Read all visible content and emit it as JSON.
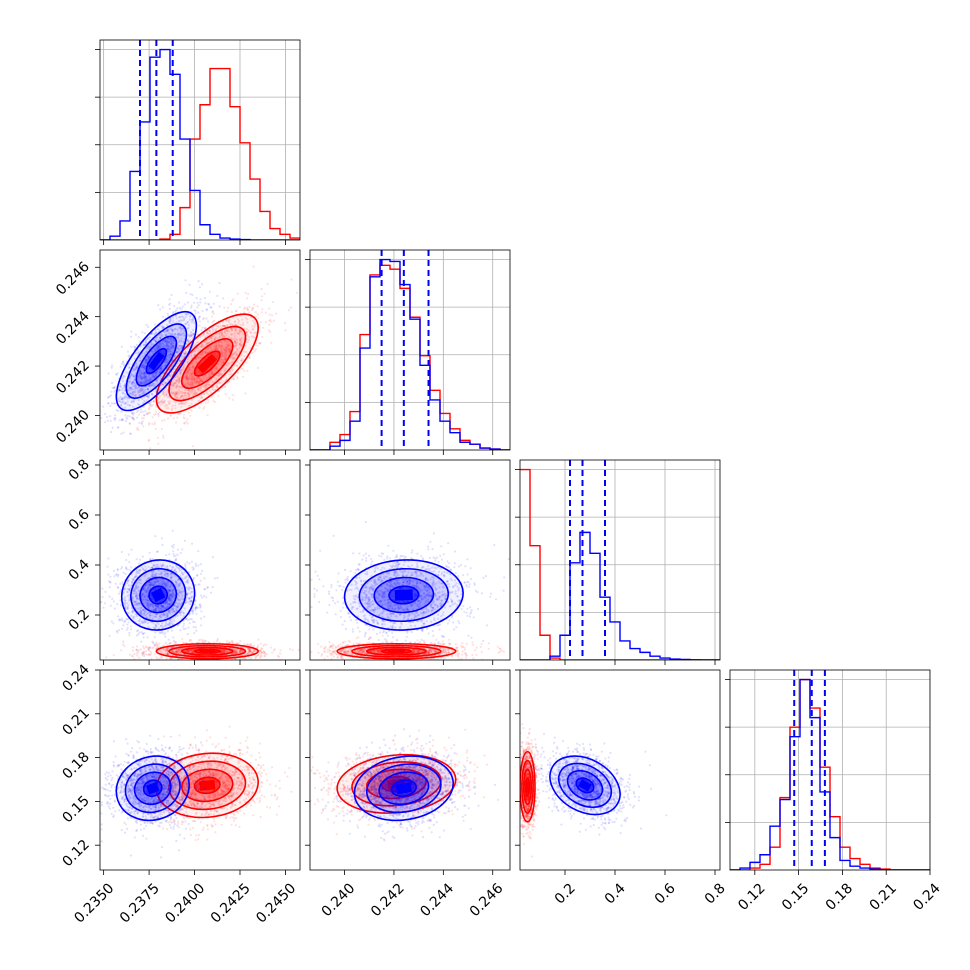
{
  "chart_data": {
    "type": "corner",
    "grid": true,
    "colors": {
      "series_a": "#0000ff",
      "series_b": "#ff0000"
    },
    "series": [
      {
        "color": "#0000ff",
        "quantiles": [
          [
            0.237,
            0.2379,
            0.2388
          ],
          [
            0.2415,
            0.2424,
            0.2434
          ],
          [
            0.22,
            0.27,
            0.36
          ],
          [
            0.147,
            0.159,
            0.168
          ]
        ]
      },
      {
        "color": "#ff0000"
      }
    ],
    "params": [
      {
        "range": [
          0.2348,
          0.2458
        ],
        "ticks": [
          0.235,
          0.2375,
          0.24,
          0.2425,
          0.245
        ],
        "tick_labels": [
          "0.2350",
          "0.2375",
          "0.2400",
          "0.2425",
          "0.2450"
        ]
      },
      {
        "range": [
          0.2386,
          0.2467
        ],
        "ticks": [
          0.24,
          0.242,
          0.244,
          0.246
        ],
        "tick_labels": [
          "0.240",
          "0.242",
          "0.244",
          "0.246"
        ]
      },
      {
        "range": [
          0.02,
          0.82
        ],
        "ticks": [
          0.2,
          0.4,
          0.6,
          0.8
        ],
        "tick_labels": [
          "0.2",
          "0.4",
          "0.6",
          "0.8"
        ]
      },
      {
        "range": [
          0.103,
          0.24
        ],
        "ticks": [
          0.12,
          0.15,
          0.18,
          0.21,
          0.24
        ],
        "tick_labels": [
          "0.12",
          "0.15",
          "0.18",
          "0.21",
          "0.24"
        ]
      }
    ],
    "histograms": [
      {
        "param": 0,
        "series_a": {
          "edges": [
            0.2348,
            0.2458
          ],
          "counts": [
            0,
            0.02,
            0.1,
            0.36,
            0.62,
            0.96,
            1.0,
            0.87,
            0.53,
            0.26,
            0.08,
            0.03,
            0.01,
            0.005,
            0.002,
            0,
            0,
            0,
            0,
            0
          ]
        },
        "series_b": {
          "edges": [
            0.2348,
            0.2458
          ],
          "counts": [
            0,
            0,
            0,
            0,
            0,
            0,
            0.005,
            0.03,
            0.17,
            0.53,
            0.71,
            0.9,
            0.9,
            0.7,
            0.51,
            0.32,
            0.15,
            0.06,
            0.03,
            0.01
          ]
        }
      },
      {
        "param": 1,
        "series_a": {
          "edges": [
            0.2386,
            0.2467
          ],
          "counts": [
            0,
            0,
            0.02,
            0.05,
            0.15,
            0.53,
            0.9,
            0.99,
            0.98,
            0.86,
            0.68,
            0.44,
            0.26,
            0.15,
            0.09,
            0.04,
            0.03,
            0.01,
            0.005,
            0
          ]
        },
        "series_b": {
          "edges": [
            0.2386,
            0.2467
          ],
          "counts": [
            0,
            0,
            0.04,
            0.08,
            0.2,
            0.6,
            0.91,
            0.96,
            0.94,
            0.84,
            0.69,
            0.49,
            0.31,
            0.19,
            0.11,
            0.05,
            0.03,
            0.01,
            0.005,
            0
          ]
        }
      },
      {
        "param": 2,
        "series_a": {
          "edges": [
            0.02,
            0.82
          ],
          "counts": [
            0,
            0,
            0,
            0.02,
            0.13,
            0.51,
            0.67,
            0.56,
            0.33,
            0.2,
            0.1,
            0.06,
            0.04,
            0.02,
            0.01,
            0.005,
            0.003,
            0.001,
            0,
            0
          ]
        },
        "series_b": {
          "edges": [
            0.02,
            0.82
          ],
          "counts": [
            1.0,
            0.6,
            0.13,
            0.01,
            0,
            0,
            0,
            0,
            0,
            0,
            0,
            0,
            0,
            0,
            0,
            0,
            0,
            0,
            0,
            0
          ]
        }
      },
      {
        "param": 3,
        "series_a": {
          "edges": [
            0.103,
            0.24
          ],
          "counts": [
            0,
            0.01,
            0.04,
            0.08,
            0.23,
            0.37,
            0.7,
            1.0,
            0.8,
            0.41,
            0.17,
            0.05,
            0.02,
            0.01,
            0.005,
            0,
            0,
            0,
            0,
            0
          ]
        },
        "series_b": {
          "edges": [
            0.103,
            0.24
          ],
          "counts": [
            0,
            0,
            0.01,
            0.03,
            0.12,
            0.38,
            0.75,
            1.0,
            0.85,
            0.54,
            0.28,
            0.12,
            0.06,
            0.03,
            0.01,
            0.005,
            0,
            0,
            0,
            0
          ]
        }
      }
    ],
    "pairs": [
      {
        "x": 0,
        "y": 1,
        "series_a": {
          "mean": [
            0.2379,
            0.2422
          ],
          "sd": [
            0.0011,
            0.001
          ],
          "rho": 0.72
        },
        "series_b": {
          "mean": [
            0.2407,
            0.2421
          ],
          "sd": [
            0.0014,
            0.001
          ],
          "rho": 0.72
        }
      },
      {
        "x": 0,
        "y": 2,
        "series_a": {
          "mean": [
            0.238,
            0.28
          ],
          "sd": [
            0.001,
            0.07
          ],
          "rho": 0.05
        },
        "series_b": {
          "mean": [
            0.2407,
            0.055
          ],
          "sd": [
            0.0014,
            0.015
          ],
          "rho": 0.0
        }
      },
      {
        "x": 0,
        "y": 3,
        "series_a": {
          "mean": [
            0.2377,
            0.159
          ],
          "sd": [
            0.001,
            0.011
          ],
          "rho": 0.1
        },
        "series_b": {
          "mean": [
            0.2407,
            0.161
          ],
          "sd": [
            0.0014,
            0.011
          ],
          "rho": 0.1
        }
      },
      {
        "x": 1,
        "y": 2,
        "series_a": {
          "mean": [
            0.2424,
            0.28
          ],
          "sd": [
            0.0012,
            0.07
          ],
          "rho": 0.05
        },
        "series_b": {
          "mean": [
            0.2421,
            0.055
          ],
          "sd": [
            0.0012,
            0.015
          ],
          "rho": 0.0
        }
      },
      {
        "x": 1,
        "y": 3,
        "series_a": {
          "mean": [
            0.2424,
            0.159
          ],
          "sd": [
            0.001,
            0.011
          ],
          "rho": 0.15
        },
        "series_b": {
          "mean": [
            0.2421,
            0.162
          ],
          "sd": [
            0.0012,
            0.01
          ],
          "rho": 0.15
        }
      },
      {
        "x": 2,
        "y": 3,
        "series_a": {
          "mean": [
            0.28,
            0.161
          ],
          "sd": [
            0.07,
            0.01
          ],
          "rho": -0.3
        },
        "series_b": {
          "mean": [
            0.05,
            0.16
          ],
          "sd": [
            0.015,
            0.012
          ],
          "rho": 0.0
        }
      }
    ]
  }
}
